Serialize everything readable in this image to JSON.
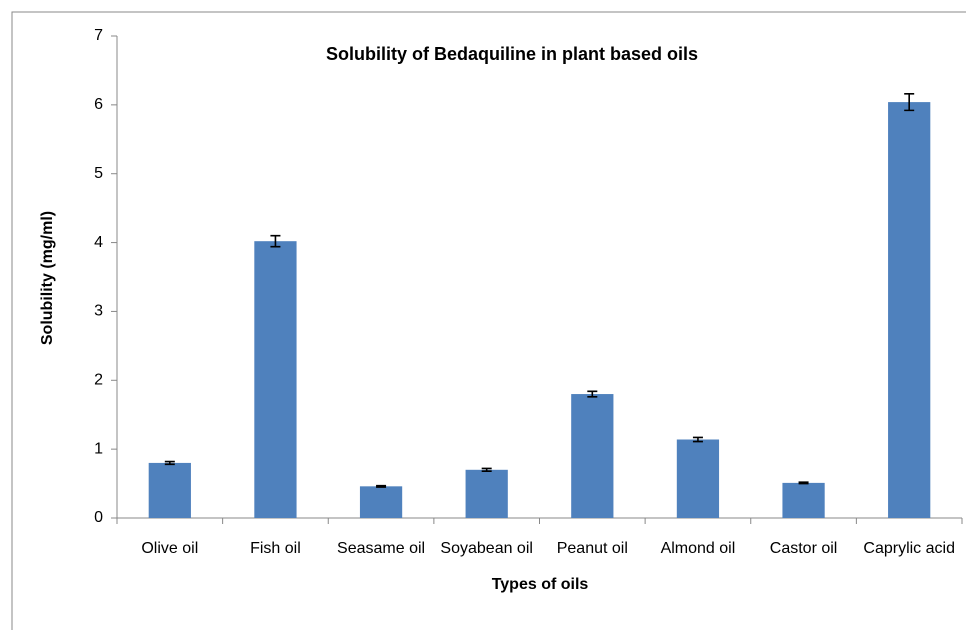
{
  "chart_data": {
    "type": "bar",
    "title": "Solubility of Bedaquiline in plant based oils",
    "x_label": "Types of oils",
    "y_label": "Solubility (mg/ml)",
    "categories": [
      "Olive oil",
      "Fish oil",
      "Seasame oil",
      "Soyabean oil",
      "Peanut oil",
      "Almond oil",
      "Castor oil",
      "Caprylic acid"
    ],
    "values": [
      0.8,
      4.02,
      0.46,
      0.7,
      1.8,
      1.14,
      0.51,
      6.04
    ],
    "errors": [
      0.02,
      0.08,
      0.01,
      0.02,
      0.04,
      0.03,
      0.01,
      0.12
    ],
    "color": "#4f81bd",
    "ylim": [
      0,
      7
    ],
    "yticks": [
      0,
      1,
      2,
      3,
      4,
      5,
      6,
      7
    ],
    "grid": false
  }
}
